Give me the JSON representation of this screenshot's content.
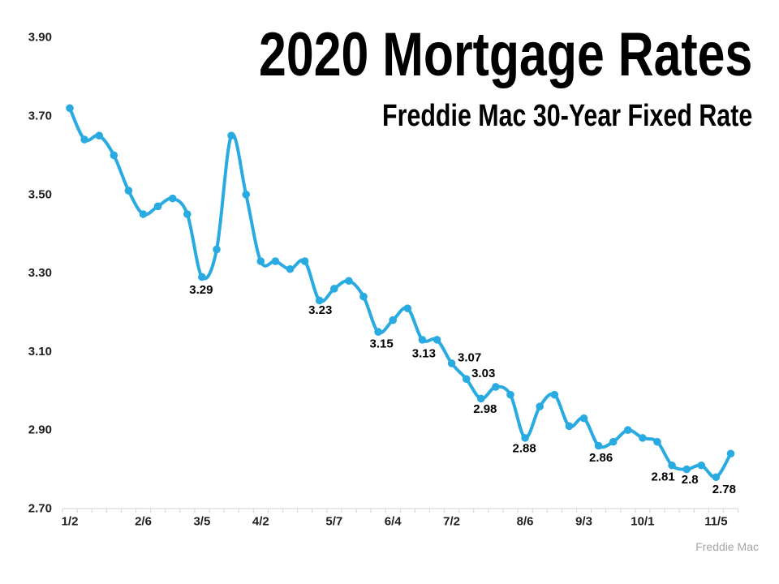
{
  "title": "2020 Mortgage Rates",
  "subtitle": "Freddie Mac 30-Year Fixed Rate",
  "source": "Freddie Mac",
  "chart_data": {
    "type": "line",
    "title": "2020 Mortgage Rates",
    "subtitle": "Freddie Mac 30-Year Fixed Rate",
    "series_name": "Freddie Mac 30-Year Fixed Rate (%)",
    "smoothed": true,
    "grid": false,
    "legend": false,
    "x": [
      "1/2",
      "1/9",
      "1/16",
      "1/23",
      "1/30",
      "2/6",
      "2/13",
      "2/20",
      "2/27",
      "3/5",
      "3/12",
      "3/19",
      "3/26",
      "4/2",
      "4/9",
      "4/16",
      "4/23",
      "4/30",
      "5/7",
      "5/14",
      "5/21",
      "5/28",
      "6/4",
      "6/11",
      "6/18",
      "6/25",
      "7/2",
      "7/9",
      "7/16",
      "7/23",
      "7/30",
      "8/6",
      "8/13",
      "8/20",
      "8/27",
      "9/3",
      "9/10",
      "9/17",
      "9/24",
      "10/1",
      "10/8",
      "10/15",
      "10/22",
      "10/29",
      "11/5",
      "11/12"
    ],
    "values": [
      3.72,
      3.64,
      3.65,
      3.6,
      3.51,
      3.45,
      3.47,
      3.49,
      3.45,
      3.29,
      3.36,
      3.65,
      3.5,
      3.33,
      3.33,
      3.31,
      3.33,
      3.23,
      3.26,
      3.28,
      3.24,
      3.15,
      3.18,
      3.21,
      3.13,
      3.13,
      3.07,
      3.03,
      2.98,
      3.01,
      2.99,
      2.88,
      2.96,
      2.99,
      2.91,
      2.93,
      2.86,
      2.87,
      2.9,
      2.88,
      2.87,
      2.81,
      2.8,
      2.81,
      2.78,
      2.84
    ],
    "point_labels": [
      {
        "index": 9,
        "text": "3.29"
      },
      {
        "index": 17,
        "text": "3.23"
      },
      {
        "index": 21,
        "text": "3.15"
      },
      {
        "index": 24,
        "text": "3.13"
      },
      {
        "index": 26,
        "text": "3.07"
      },
      {
        "index": 27,
        "text": "3.03"
      },
      {
        "index": 28,
        "text": "2.98"
      },
      {
        "index": 31,
        "text": "2.88"
      },
      {
        "index": 36,
        "text": "2.86"
      },
      {
        "index": 41,
        "text": "2.81"
      },
      {
        "index": 42,
        "text": "2.8"
      },
      {
        "index": 44,
        "text": "2.78"
      }
    ],
    "x_axis": {
      "tick_labels": [
        "1/2",
        "2/6",
        "3/5",
        "4/2",
        "5/7",
        "6/4",
        "7/2",
        "8/6",
        "9/3",
        "10/1",
        "11/5"
      ],
      "tick_indices": [
        0,
        5,
        9,
        13,
        18,
        22,
        26,
        31,
        35,
        39,
        44
      ]
    },
    "y_axis": {
      "tick_values": [
        2.7,
        2.9,
        3.1,
        3.3,
        3.5,
        3.7,
        3.9
      ],
      "tick_labels": [
        "2.70",
        "2.90",
        "3.10",
        "3.30",
        "3.50",
        "3.70",
        "3.90"
      ]
    },
    "ylim": [
      2.7,
      3.9
    ],
    "line_color": "#29ABE2",
    "marker_color": "#29ABE2",
    "axis_color": "#D9D9D9",
    "tick_label_color": "#1F1F1F",
    "data_label_color": "#000000",
    "source_color": "#A6A6A6"
  }
}
